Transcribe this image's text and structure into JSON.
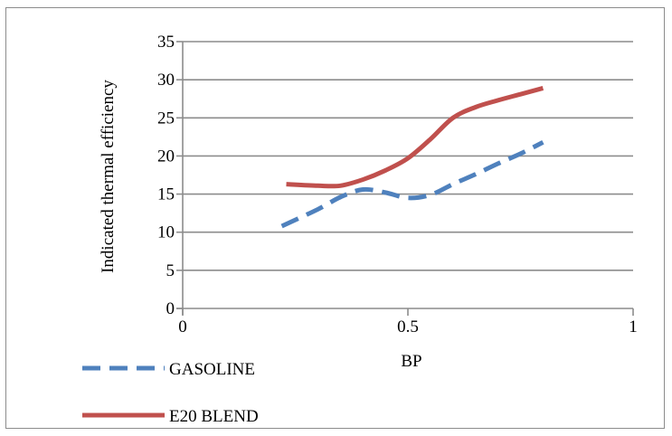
{
  "chart_data": {
    "type": "line",
    "title": "",
    "xlabel": "BP",
    "ylabel": "Indicated thermal efficiency",
    "xlim": [
      0,
      1
    ],
    "ylim": [
      0,
      35
    ],
    "x_ticks": [
      "0",
      "0.5",
      "1"
    ],
    "y_ticks": [
      "0",
      "5",
      "10",
      "15",
      "20",
      "25",
      "30",
      "35"
    ],
    "grid": "horizontal",
    "legend_position": "bottom-left",
    "series": [
      {
        "name": "GASOLINE",
        "color": "#4f81bd",
        "style": "dashed",
        "x": [
          0.22,
          0.3,
          0.35,
          0.4,
          0.45,
          0.5,
          0.55,
          0.6,
          0.65,
          0.7,
          0.75,
          0.8
        ],
        "y": [
          10.8,
          13.0,
          14.6,
          15.6,
          15.2,
          14.5,
          14.9,
          16.3,
          17.6,
          19.0,
          20.3,
          21.8
        ]
      },
      {
        "name": "E20 BLEND",
        "color": "#c0504d",
        "style": "solid",
        "x": [
          0.23,
          0.3,
          0.35,
          0.4,
          0.45,
          0.5,
          0.55,
          0.6,
          0.65,
          0.7,
          0.75,
          0.8
        ],
        "y": [
          16.3,
          16.1,
          16.1,
          16.9,
          18.1,
          19.7,
          22.2,
          25.0,
          26.4,
          27.3,
          28.1,
          28.9
        ]
      }
    ]
  }
}
